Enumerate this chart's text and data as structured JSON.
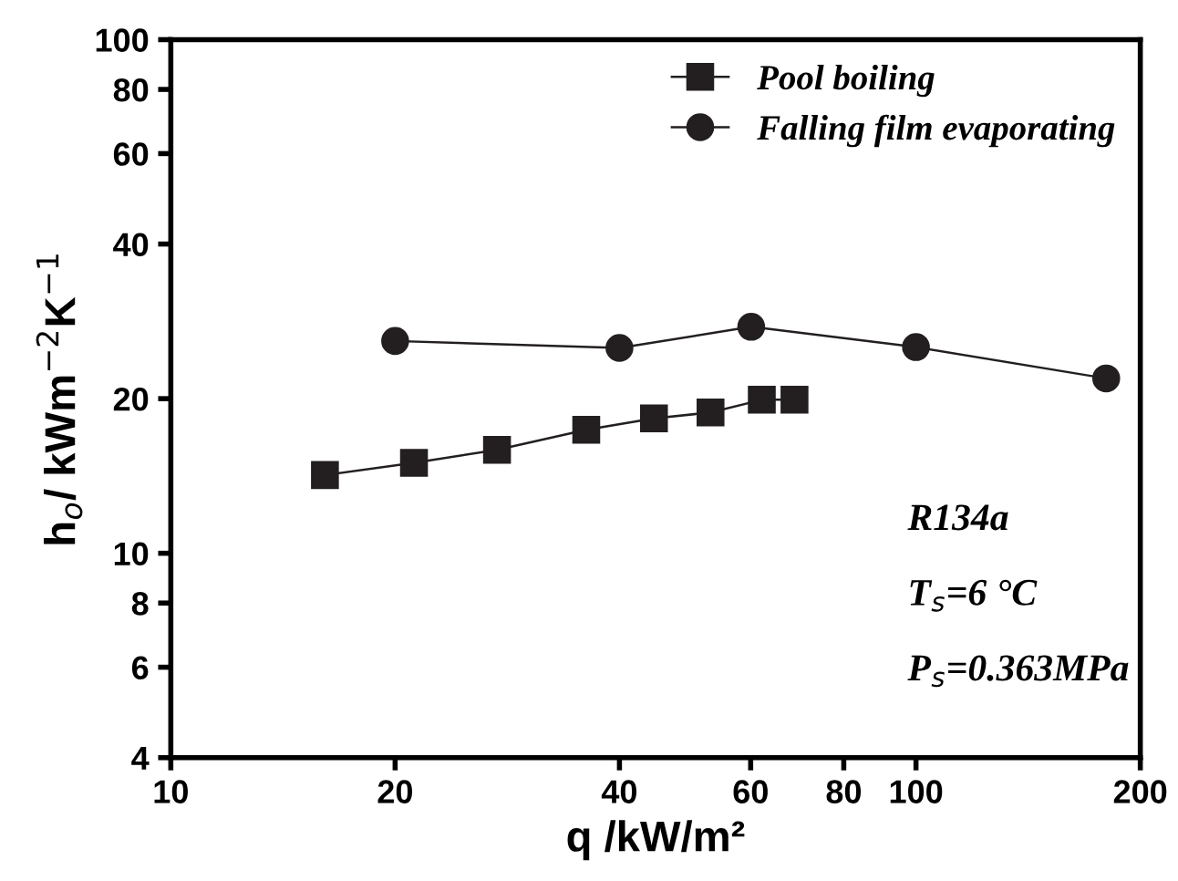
{
  "chart_data": {
    "type": "line",
    "xlabel": "q /kW/m²",
    "ylabel": "h$_{o}$/ kWm$^{−2}$K$^{−1}$",
    "log": "xy",
    "xlim": [
      10,
      200
    ],
    "xticks": [
      10,
      20,
      40,
      60,
      80,
      100,
      200
    ],
    "ylim": [
      4,
      100
    ],
    "yticks": [
      4,
      6,
      8,
      10,
      20,
      40,
      60,
      80,
      100
    ],
    "grid": false,
    "legend": "top right",
    "line_style": "solid",
    "annotations": [
      "R134a",
      "T$_{s}$=6 °C",
      "P$_{s}$=0.363MPa"
    ],
    "series": [
      {
        "name": "Pool boiling",
        "color": "#231f20",
        "marker": "square",
        "x": [
          16.1,
          21.2,
          27.4,
          36.1,
          44.5,
          53,
          62.1,
          68.7
        ],
        "values": [
          14.2,
          15.0,
          15.9,
          17.4,
          18.3,
          18.8,
          19.9,
          19.9
        ]
      },
      {
        "name": "Falling film evaporating",
        "color": "#231f20",
        "marker": "circle",
        "x": [
          20,
          40,
          60.1,
          100,
          180
        ],
        "values": [
          25.9,
          25.1,
          27.6,
          25.2,
          21.9
        ]
      }
    ]
  }
}
